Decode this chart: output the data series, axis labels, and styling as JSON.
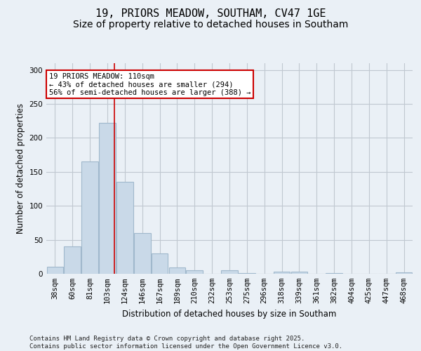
{
  "title_line1": "19, PRIORS MEADOW, SOUTHAM, CV47 1GE",
  "title_line2": "Size of property relative to detached houses in Southam",
  "xlabel": "Distribution of detached houses by size in Southam",
  "ylabel": "Number of detached properties",
  "categories": [
    "38sqm",
    "60sqm",
    "81sqm",
    "103sqm",
    "124sqm",
    "146sqm",
    "167sqm",
    "189sqm",
    "210sqm",
    "232sqm",
    "253sqm",
    "275sqm",
    "296sqm",
    "318sqm",
    "339sqm",
    "361sqm",
    "382sqm",
    "404sqm",
    "425sqm",
    "447sqm",
    "468sqm"
  ],
  "values": [
    10,
    40,
    165,
    222,
    135,
    60,
    30,
    9,
    5,
    0,
    5,
    1,
    0,
    3,
    3,
    0,
    1,
    0,
    0,
    0,
    2
  ],
  "bar_color": "#c9d9e8",
  "bar_edgecolor": "#a0b8cc",
  "bar_linewidth": 0.8,
  "grid_color": "#c0c8d0",
  "background_color": "#eaf0f6",
  "vline_x_index": 3.42,
  "vline_color": "#cc0000",
  "annotation_text": "19 PRIORS MEADOW: 110sqm\n← 43% of detached houses are smaller (294)\n56% of semi-detached houses are larger (388) →",
  "annotation_box_color": "#ffffff",
  "annotation_box_edgecolor": "#cc0000",
  "ylim": [
    0,
    310
  ],
  "yticks": [
    0,
    50,
    100,
    150,
    200,
    250,
    300
  ],
  "footer_text": "Contains HM Land Registry data © Crown copyright and database right 2025.\nContains public sector information licensed under the Open Government Licence v3.0.",
  "title_fontsize": 11,
  "subtitle_fontsize": 10,
  "axis_label_fontsize": 8.5,
  "tick_fontsize": 7.5,
  "annotation_fontsize": 7.5,
  "footer_fontsize": 6.5
}
